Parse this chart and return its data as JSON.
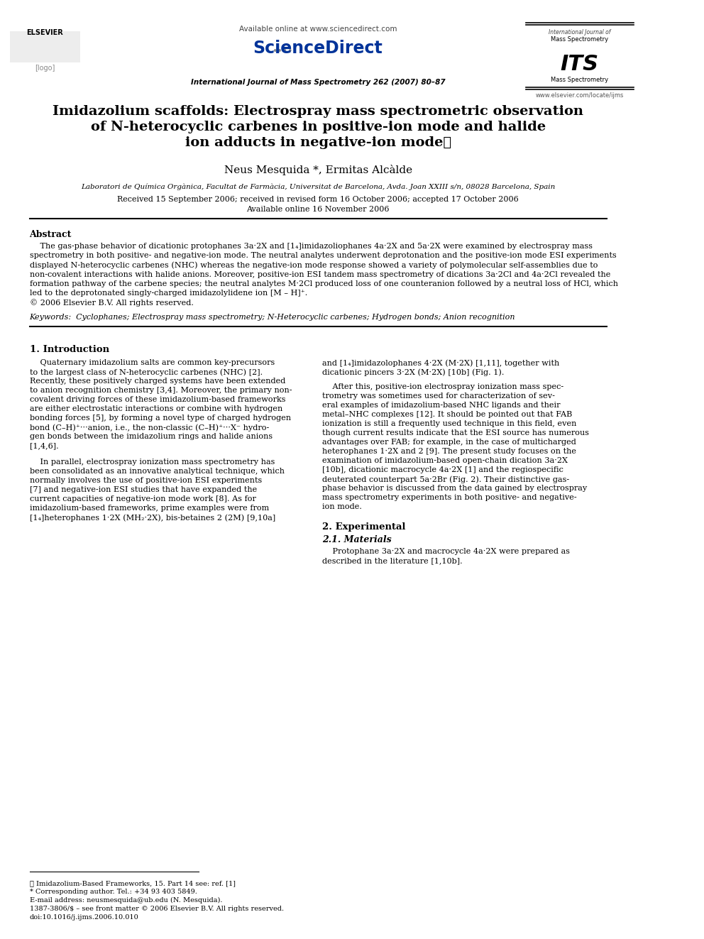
{
  "bg_color": "#ffffff",
  "header_available": "Available online at www.sciencedirect.com",
  "header_journal": "International Journal of Mass Spectrometry 262 (2007) 80–87",
  "header_url": "www.elsevier.com/locate/ijms",
  "title_line1": "Imidazolium scaffolds: Electrospray mass spectrometric observation",
  "title_line2": "of N-heterocyclic carbenes in positive-ion mode and halide",
  "title_line3": "ion adducts in negative-ion mode★",
  "authors": "Neus Mesquida *, Ermitas Alcàlde",
  "affiliation": "Laboratori de Química Orgànica, Facultat de Farmàcia, Universitat de Barcelona, Avda. Joan XXIII s/n, 08028 Barcelona, Spain",
  "received": "Received 15 September 2006; received in revised form 16 October 2006; accepted 17 October 2006",
  "available_online": "Available online 16 November 2006",
  "abstract_header": "Abstract",
  "keywords_line": "Keywords:  Cyclophanes; Electrospray mass spectrometry; N-Heterocyclic carbenes; Hydrogen bonds; Anion recognition",
  "footnote1": "★ Imidazolium-Based Frameworks, 15. Part 14 see: ref. [1]",
  "footnote2": "* Corresponding author. Tel.: +34 93 403 5849.",
  "footnote3": "E-mail address: neusmesquida@ub.edu (N. Mesquida).",
  "footnote4": "1387-3806/$ – see front matter © 2006 Elsevier B.V. All rights reserved.",
  "footnote5": "doi:10.1016/j.ijms.2006.10.010",
  "abstract_lines": [
    "    The gas-phase behavior of dicationic protophanes 3a·2X and [1₄]imidazoliophanes 4a·2X and 5a·2X were examined by electrospray mass",
    "spectrometry in both positive- and negative-ion mode. The neutral analytes underwent deprotonation and the positive-ion mode ESI experiments",
    "displayed N-heterocyclic carbenes (NHC) whereas the negative-ion mode response showed a variety of polymolecular self-assemblies due to",
    "non-covalent interactions with halide anions. Moreover, positive-ion ESI tandem mass spectrometry of dications 3a·2Cl and 4a·2Cl revealed the",
    "formation pathway of the carbene species; the neutral analytes M·2Cl produced loss of one counteranion followed by a neutral loss of HCl, which",
    "led to the deprotonated singly-charged imidazolylidene ion [M – H]⁺.",
    "© 2006 Elsevier B.V. All rights reserved."
  ],
  "col1_intro_lines": [
    "    Quaternary imidazolium salts are common key-precursors",
    "to the largest class of N-heterocyclic carbenes (NHC) [2].",
    "Recently, these positively charged systems have been extended",
    "to anion recognition chemistry [3,4]. Moreover, the primary non-",
    "covalent driving forces of these imidazolium-based frameworks",
    "are either electrostatic interactions or combine with hydrogen",
    "bonding forces [5], by forming a novel type of charged hydrogen",
    "bond (C–H)⁺···anion, i.e., the non-classic (C–H)⁺···X⁻ hydro-",
    "gen bonds between the imidazolium rings and halide anions",
    "[1,4,6]."
  ],
  "col1_p2_lines": [
    "    In parallel, electrospray ionization mass spectrometry has",
    "been consolidated as an innovative analytical technique, which",
    "normally involves the use of positive-ion ESI experiments",
    "[7] and negative-ion ESI studies that have expanded the",
    "current capacities of negative-ion mode work [8]. As for",
    "imidazolium-based frameworks, prime examples were from",
    "[1₄]heterophanes 1·2X (MH₂·2X), bis-betaines 2 (2M) [9,10a]"
  ],
  "col2_intro_lines": [
    "and [1₄]imidazolophanes 4·2X (M·2X) [1,11], together with",
    "dicationic pincers 3·2X (M·2X) [10b] (Fig. 1)."
  ],
  "col2_p2_lines": [
    "    After this, positive-ion electrospray ionization mass spec-",
    "trometry was sometimes used for characterization of sev-",
    "eral examples of imidazolium-based NHC ligands and their",
    "metal–NHC complexes [12]. It should be pointed out that FAB",
    "ionization is still a frequently used technique in this field, even",
    "though current results indicate that the ESI source has numerous",
    "advantages over FAB; for example, in the case of multicharged",
    "heterophanes 1·2X and 2 [9]. The present study focuses on the",
    "examination of imidazolium-based open-chain dication 3a·2X",
    "[10b], dicationic macrocycle 4a·2X [1] and the regiospecific",
    "deuterated counterpart 5a·2Br (Fig. 2). Their distinctive gas-",
    "phase behavior is discussed from the data gained by electrospray",
    "mass spectrometry experiments in both positive- and negative-",
    "ion mode."
  ],
  "col2_sect2_lines": [
    "    Protophane 3a·2X and macrocycle 4a·2X were prepared as",
    "described in the literature [1,10b]."
  ]
}
